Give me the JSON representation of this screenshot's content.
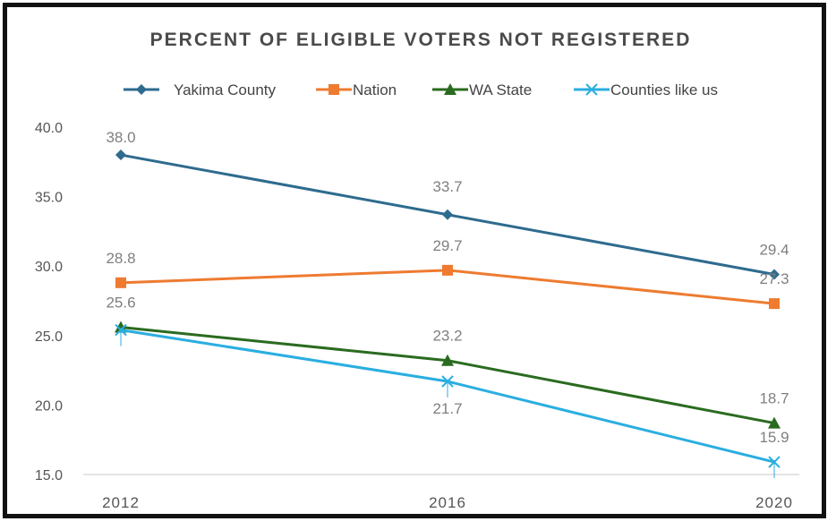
{
  "chart_data": {
    "type": "line",
    "title": "PERCENT OF ELIGIBLE VOTERS NOT REGISTERED",
    "categories": [
      "2012",
      "2016",
      "2020"
    ],
    "ylim": [
      15.0,
      40.0
    ],
    "yticks": [
      "40.0",
      "35.0",
      "30.0",
      "25.0",
      "20.0",
      "15.0"
    ],
    "grid": false,
    "legend": "top",
    "series": [
      {
        "name": "Yakima County",
        "values": [
          38.0,
          33.7,
          29.4
        ],
        "labels": [
          "38.0",
          "33.7",
          "29.4"
        ],
        "color": "#2e6b8e",
        "marker": "diamond"
      },
      {
        "name": "Nation",
        "values": [
          28.8,
          29.7,
          27.3
        ],
        "labels": [
          "28.8",
          "29.7",
          "27.3"
        ],
        "color": "#ee7b30",
        "marker": "square"
      },
      {
        "name": "WA State",
        "values": [
          25.6,
          23.2,
          18.7
        ],
        "labels": [
          "25.6",
          "23.2",
          "18.7"
        ],
        "color": "#2a6b1f",
        "marker": "triangle"
      },
      {
        "name": "Counties like us",
        "values": [
          25.4,
          21.7,
          15.9
        ],
        "labels": [
          "",
          "21.7",
          "15.9"
        ],
        "color": "#2aaee0",
        "marker": "x"
      }
    ]
  }
}
